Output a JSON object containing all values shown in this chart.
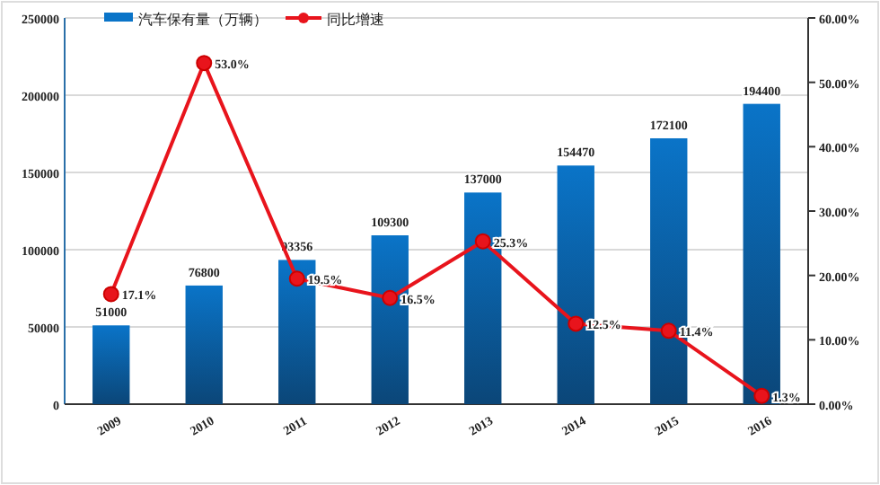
{
  "chart_data": {
    "type": "bar",
    "categories": [
      "2009",
      "2010",
      "2011",
      "2012",
      "2013",
      "2014",
      "2015",
      "2016"
    ],
    "series": [
      {
        "name": "汽车保有量（万辆）",
        "color": "#0a74c8",
        "values": [
          51000,
          76800,
          93356,
          109300,
          137000,
          154470,
          172100,
          194400
        ]
      },
      {
        "name": "同比增速",
        "type": "line",
        "axis": "y2",
        "color": "#e8141c",
        "marker": "circle",
        "values": [
          17.1,
          53.0,
          19.5,
          16.5,
          25.3,
          12.5,
          11.4,
          1.3
        ],
        "value_labels": [
          "17.1%",
          "53.0%",
          "19.5%",
          "16.5%",
          "25.3%",
          "12.5%",
          "11.4%",
          "1.3%"
        ]
      }
    ],
    "data_labels": true,
    "ylim": [
      0,
      250000
    ],
    "yticks": [
      0,
      50000,
      100000,
      150000,
      200000,
      250000
    ],
    "y2lim": [
      0,
      60
    ],
    "y2ticks": [
      {
        "value": 0,
        "label": "0.00%"
      },
      {
        "value": 10,
        "label": "10.00%"
      },
      {
        "value": 20,
        "label": "20.00%"
      },
      {
        "value": 30,
        "label": "30.00%"
      },
      {
        "value": 40,
        "label": "40.00%"
      },
      {
        "value": 50,
        "label": "50.00%"
      },
      {
        "value": 60,
        "label": "60.00%"
      }
    ],
    "grid": "y",
    "legend": "top"
  }
}
